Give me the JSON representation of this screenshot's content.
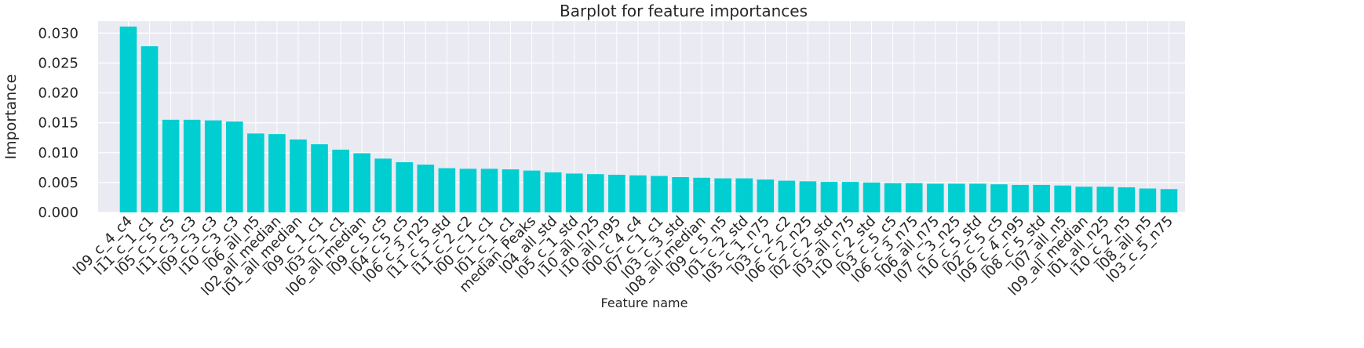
{
  "chart_data": {
    "type": "bar",
    "title": "Barplot for feature importances",
    "xlabel": "Feature name",
    "ylabel": "Importance",
    "ylim": [
      0,
      0.032
    ],
    "yticks": [
      "0.000",
      "0.005",
      "0.010",
      "0.015",
      "0.020",
      "0.025",
      "0.030"
    ],
    "bar_color": "#00CED1",
    "background_color": "#EAEAF2",
    "grid": true,
    "categories": [
      "l09_c_4_c4",
      "l11_c_1_c1",
      "l05_c_5_c5",
      "l11_c_3_c3",
      "l09_c_3_c3",
      "l10_c_3_c3",
      "l06_all_n5",
      "l02_all_median",
      "l01_all_median",
      "l09_c_1_c1",
      "l03_c_1_c1",
      "l06_all_median",
      "l09_c_5_c5",
      "l04_c_5_c5",
      "l06_c_3_n25",
      "l11_c_5_std",
      "l11_c_2_c2",
      "l00_c_1_c1",
      "l01_c_1_c1",
      "median_Peaks",
      "l04_all_std",
      "l05_c_1_std",
      "l10_all_n25",
      "l10_all_n95",
      "l00_c_4_c4",
      "l07_c_1_c1",
      "l03_c_3_std",
      "l08_all_median",
      "l09_c_5_n5",
      "l01_c_2_std",
      "l05_c_1_n75",
      "l03_c_2_c2",
      "l06_c_2_n25",
      "l02_c_2_std",
      "l03_all_n75",
      "l10_c_2_std",
      "l03_c_5_c5",
      "l06_c_3_n75",
      "l06_all_n75",
      "l07_c_3_n25",
      "l10_c_5_std",
      "l02_c_5_c5",
      "l09_c_4_n95",
      "l08_c_5_std",
      "l07_all_n5",
      "l09_all_median",
      "l01_all_n25",
      "l10_c_2_n5",
      "l08_all_n5",
      "l03_c_5_n75"
    ],
    "values": [
      0.0311,
      0.0278,
      0.0155,
      0.0155,
      0.0154,
      0.0152,
      0.0132,
      0.0131,
      0.0122,
      0.0114,
      0.0105,
      0.0099,
      0.009,
      0.0084,
      0.008,
      0.0074,
      0.0073,
      0.0073,
      0.0072,
      0.007,
      0.0067,
      0.0065,
      0.0064,
      0.0063,
      0.0062,
      0.0061,
      0.0059,
      0.0058,
      0.0057,
      0.0057,
      0.0055,
      0.0053,
      0.0052,
      0.0051,
      0.0051,
      0.005,
      0.0049,
      0.0049,
      0.0048,
      0.0048,
      0.0048,
      0.0047,
      0.0046,
      0.0046,
      0.0045,
      0.0043,
      0.0043,
      0.0042,
      0.004,
      0.0039
    ]
  }
}
